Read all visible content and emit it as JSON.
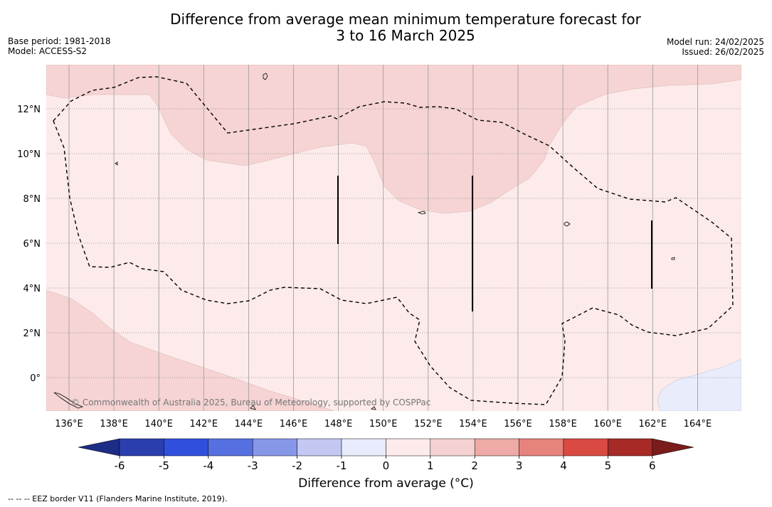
{
  "title_line1": "Difference from average mean minimum temperature forecast for",
  "title_line2": "3 to 16 March 2025",
  "base_period": "Base period: 1981-2018",
  "model": "Model: ACCESS-S2",
  "model_run": "Model run: 24/02/2025",
  "issued": "Issued: 26/02/2025",
  "copyright": "© Commonwealth of Australia 2025, Bureau of Meteorology, supported by COSPPac",
  "footnote": "-- -- -- EEZ border V11 (Flanders Marine Institute, 2019).",
  "lon_labels": [
    "136°E",
    "138°E",
    "140°E",
    "142°E",
    "144°E",
    "146°E",
    "148°E",
    "150°E",
    "152°E",
    "154°E",
    "156°E",
    "158°E",
    "160°E",
    "162°E",
    "164°E"
  ],
  "lat_labels": [
    "12°N",
    "10°N",
    "8°N",
    "6°N",
    "4°N",
    "2°N",
    "0°"
  ],
  "colorbar": {
    "label": "Difference from average (°C)",
    "ticks": [
      "-6",
      "-5",
      "-4",
      "-3",
      "-2",
      "-1",
      "0",
      "1",
      "2",
      "3",
      "4",
      "5",
      "6"
    ],
    "colors": [
      "#1c2d86",
      "#2b3eae",
      "#2f4fdc",
      "#5670e0",
      "#8797e8",
      "#c3c8f2",
      "#e8ebfb",
      "#fcebea",
      "#f5d2d1",
      "#eeaaa6",
      "#e6837c",
      "#d94a42",
      "#a72a26",
      "#7a1c1a"
    ]
  },
  "field_colors": {
    "low": "#fcebea",
    "mid": "#f5d4d3",
    "neg": "#e9ecfb"
  }
}
